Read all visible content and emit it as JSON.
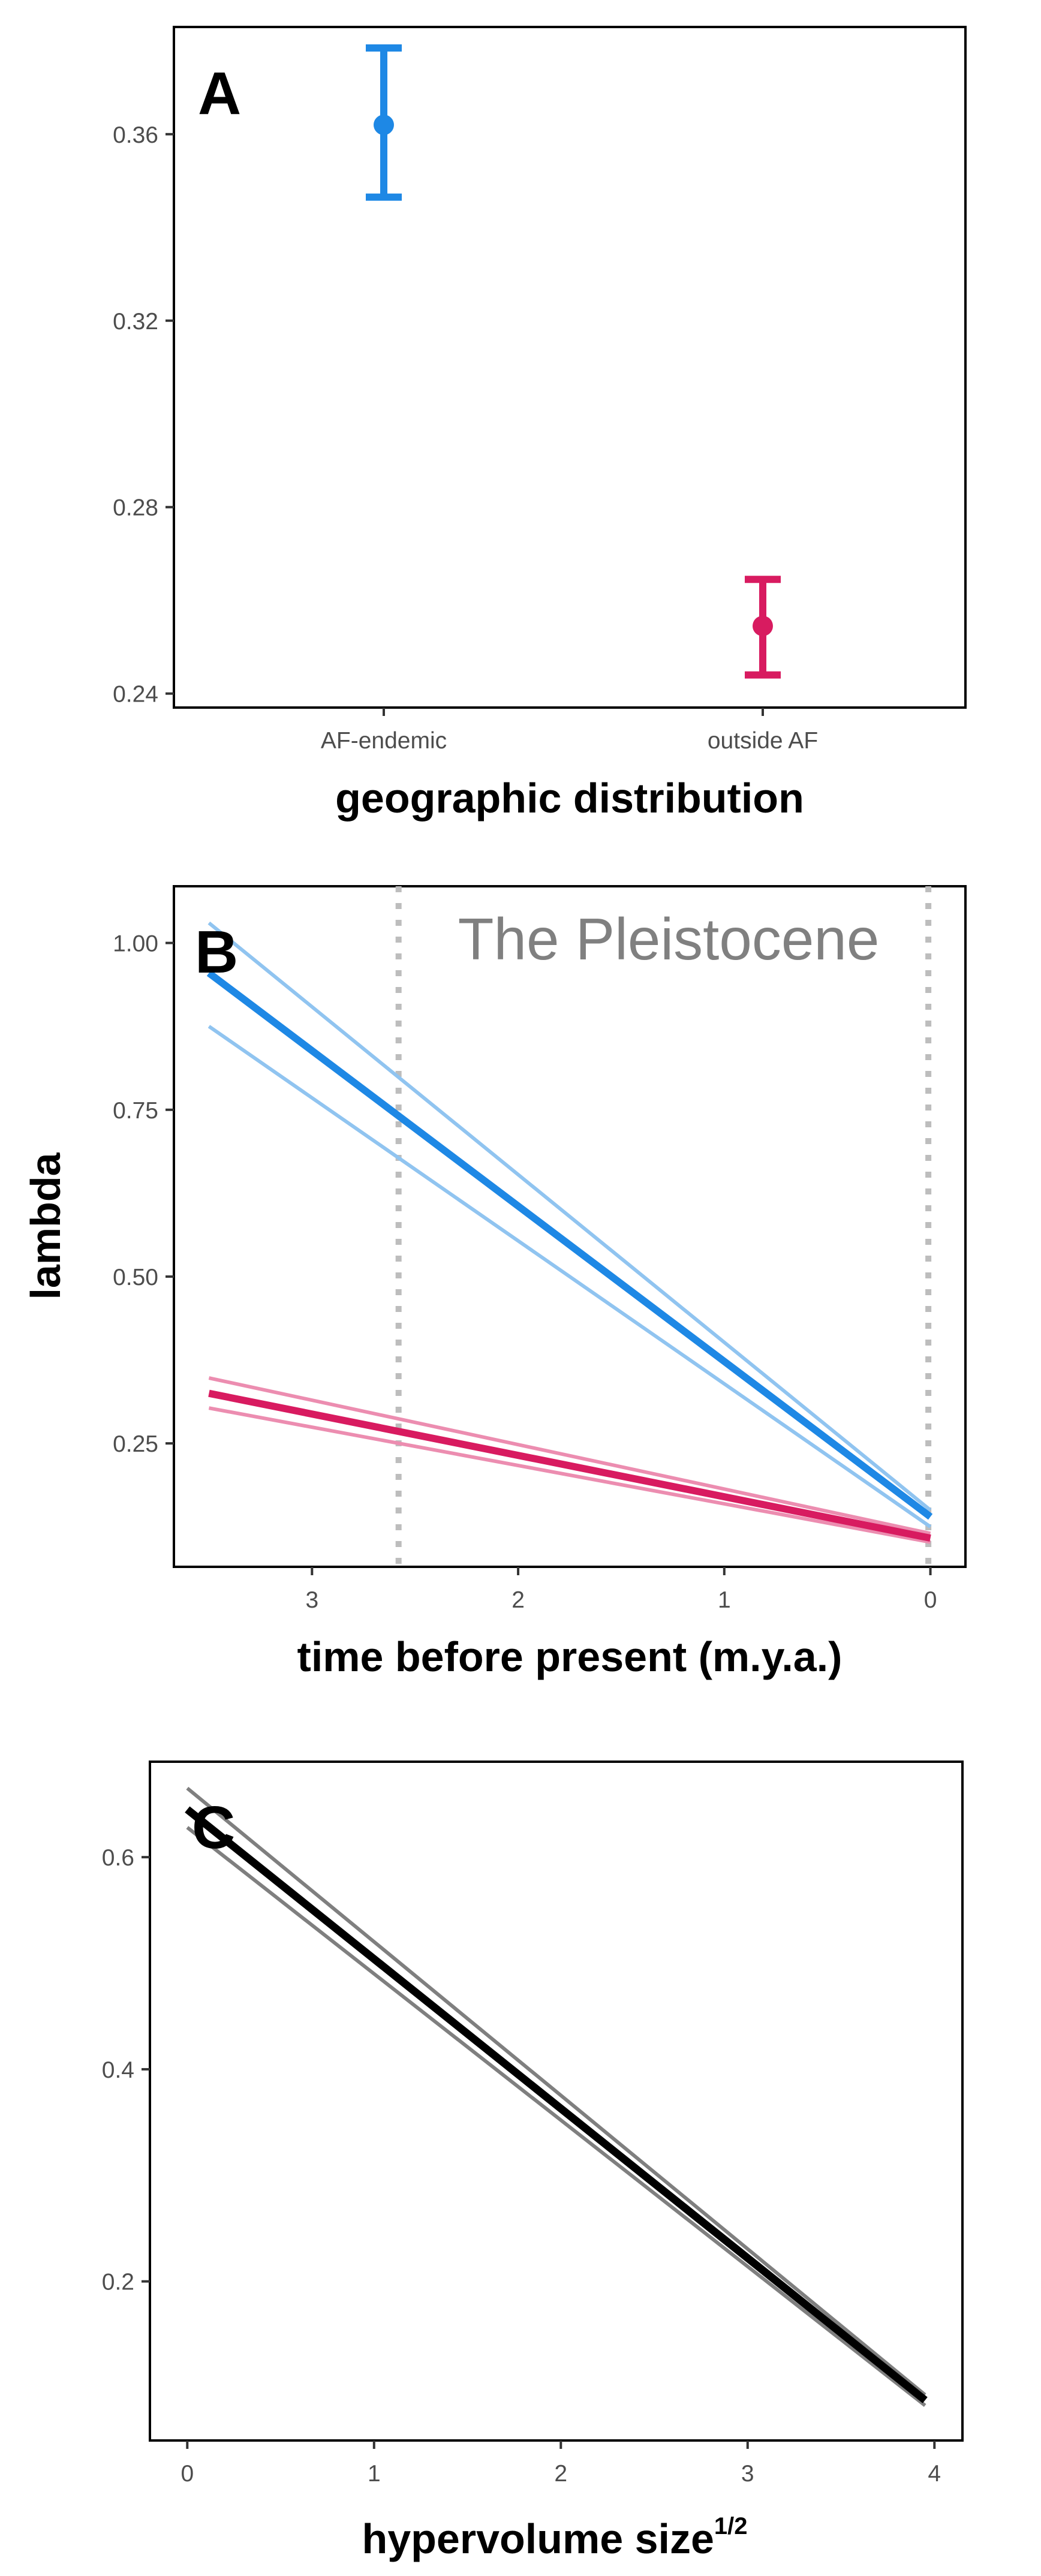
{
  "chart_data": [
    {
      "panel": "A",
      "type": "scatter",
      "panel_label": "A",
      "xlabel": "geographic distribution",
      "ylabel": "",
      "categories": [
        "AF-endemic",
        "outside AF"
      ],
      "ylim": [
        0.237,
        0.383
      ],
      "yticks": [
        "0.24",
        "0.28",
        "0.32",
        "0.36"
      ],
      "series": [
        {
          "category": "AF-endemic",
          "value": 0.362,
          "lower": 0.3465,
          "upper": 0.3785,
          "color": "#1E88E5"
        },
        {
          "category": "outside AF",
          "value": 0.2545,
          "lower": 0.244,
          "upper": 0.2645,
          "color": "#D81B60"
        }
      ],
      "grid": false
    },
    {
      "panel": "B",
      "type": "line",
      "panel_label": "B",
      "xlabel": "time before present (m.y.a.)",
      "ylabel": "lambda",
      "xlim": [
        3.67,
        -0.17
      ],
      "ylim": [
        0.065,
        1.085
      ],
      "xticks": [
        "3",
        "2",
        "1",
        "0"
      ],
      "yticks": [
        "0.25",
        "0.50",
        "0.75",
        "1.00"
      ],
      "annotation": "The Pleistocene",
      "reference_lines": [
        {
          "x": 2.58,
          "color": "#BDBDBD"
        },
        {
          "x": 0.01,
          "color": "#BDBDBD"
        }
      ],
      "series": [
        {
          "color": "#1E88E5",
          "band_color": "#90C4F0",
          "x": [
            3.5,
            0.0
          ],
          "y": [
            0.955,
            0.14
          ],
          "lower": [
            0.875,
            0.125
          ],
          "upper": [
            1.03,
            0.15
          ]
        },
        {
          "color": "#D81B60",
          "band_color": "#EC8DB0",
          "x": [
            3.5,
            0.0
          ],
          "y": [
            0.325,
            0.108
          ],
          "lower": [
            0.303,
            0.102
          ],
          "upper": [
            0.348,
            0.115
          ]
        }
      ],
      "grid": false
    },
    {
      "panel": "C",
      "type": "line",
      "panel_label": "C",
      "xlabel": "hypervolume size",
      "xlabel_superscript": "1/2",
      "ylabel": "",
      "xlim": [
        -0.2,
        4.15
      ],
      "ylim": [
        0.05,
        0.69
      ],
      "xticks": [
        "0",
        "1",
        "2",
        "3",
        "4"
      ],
      "yticks": [
        "0.2",
        "0.4",
        "0.6"
      ],
      "series": [
        {
          "color": "#000000",
          "band_color": "#7F7F7F",
          "x": [
            0.0,
            3.95
          ],
          "y": [
            0.645,
            0.088
          ],
          "lower": [
            0.628,
            0.083
          ],
          "upper": [
            0.665,
            0.093
          ]
        }
      ],
      "grid": false
    }
  ]
}
